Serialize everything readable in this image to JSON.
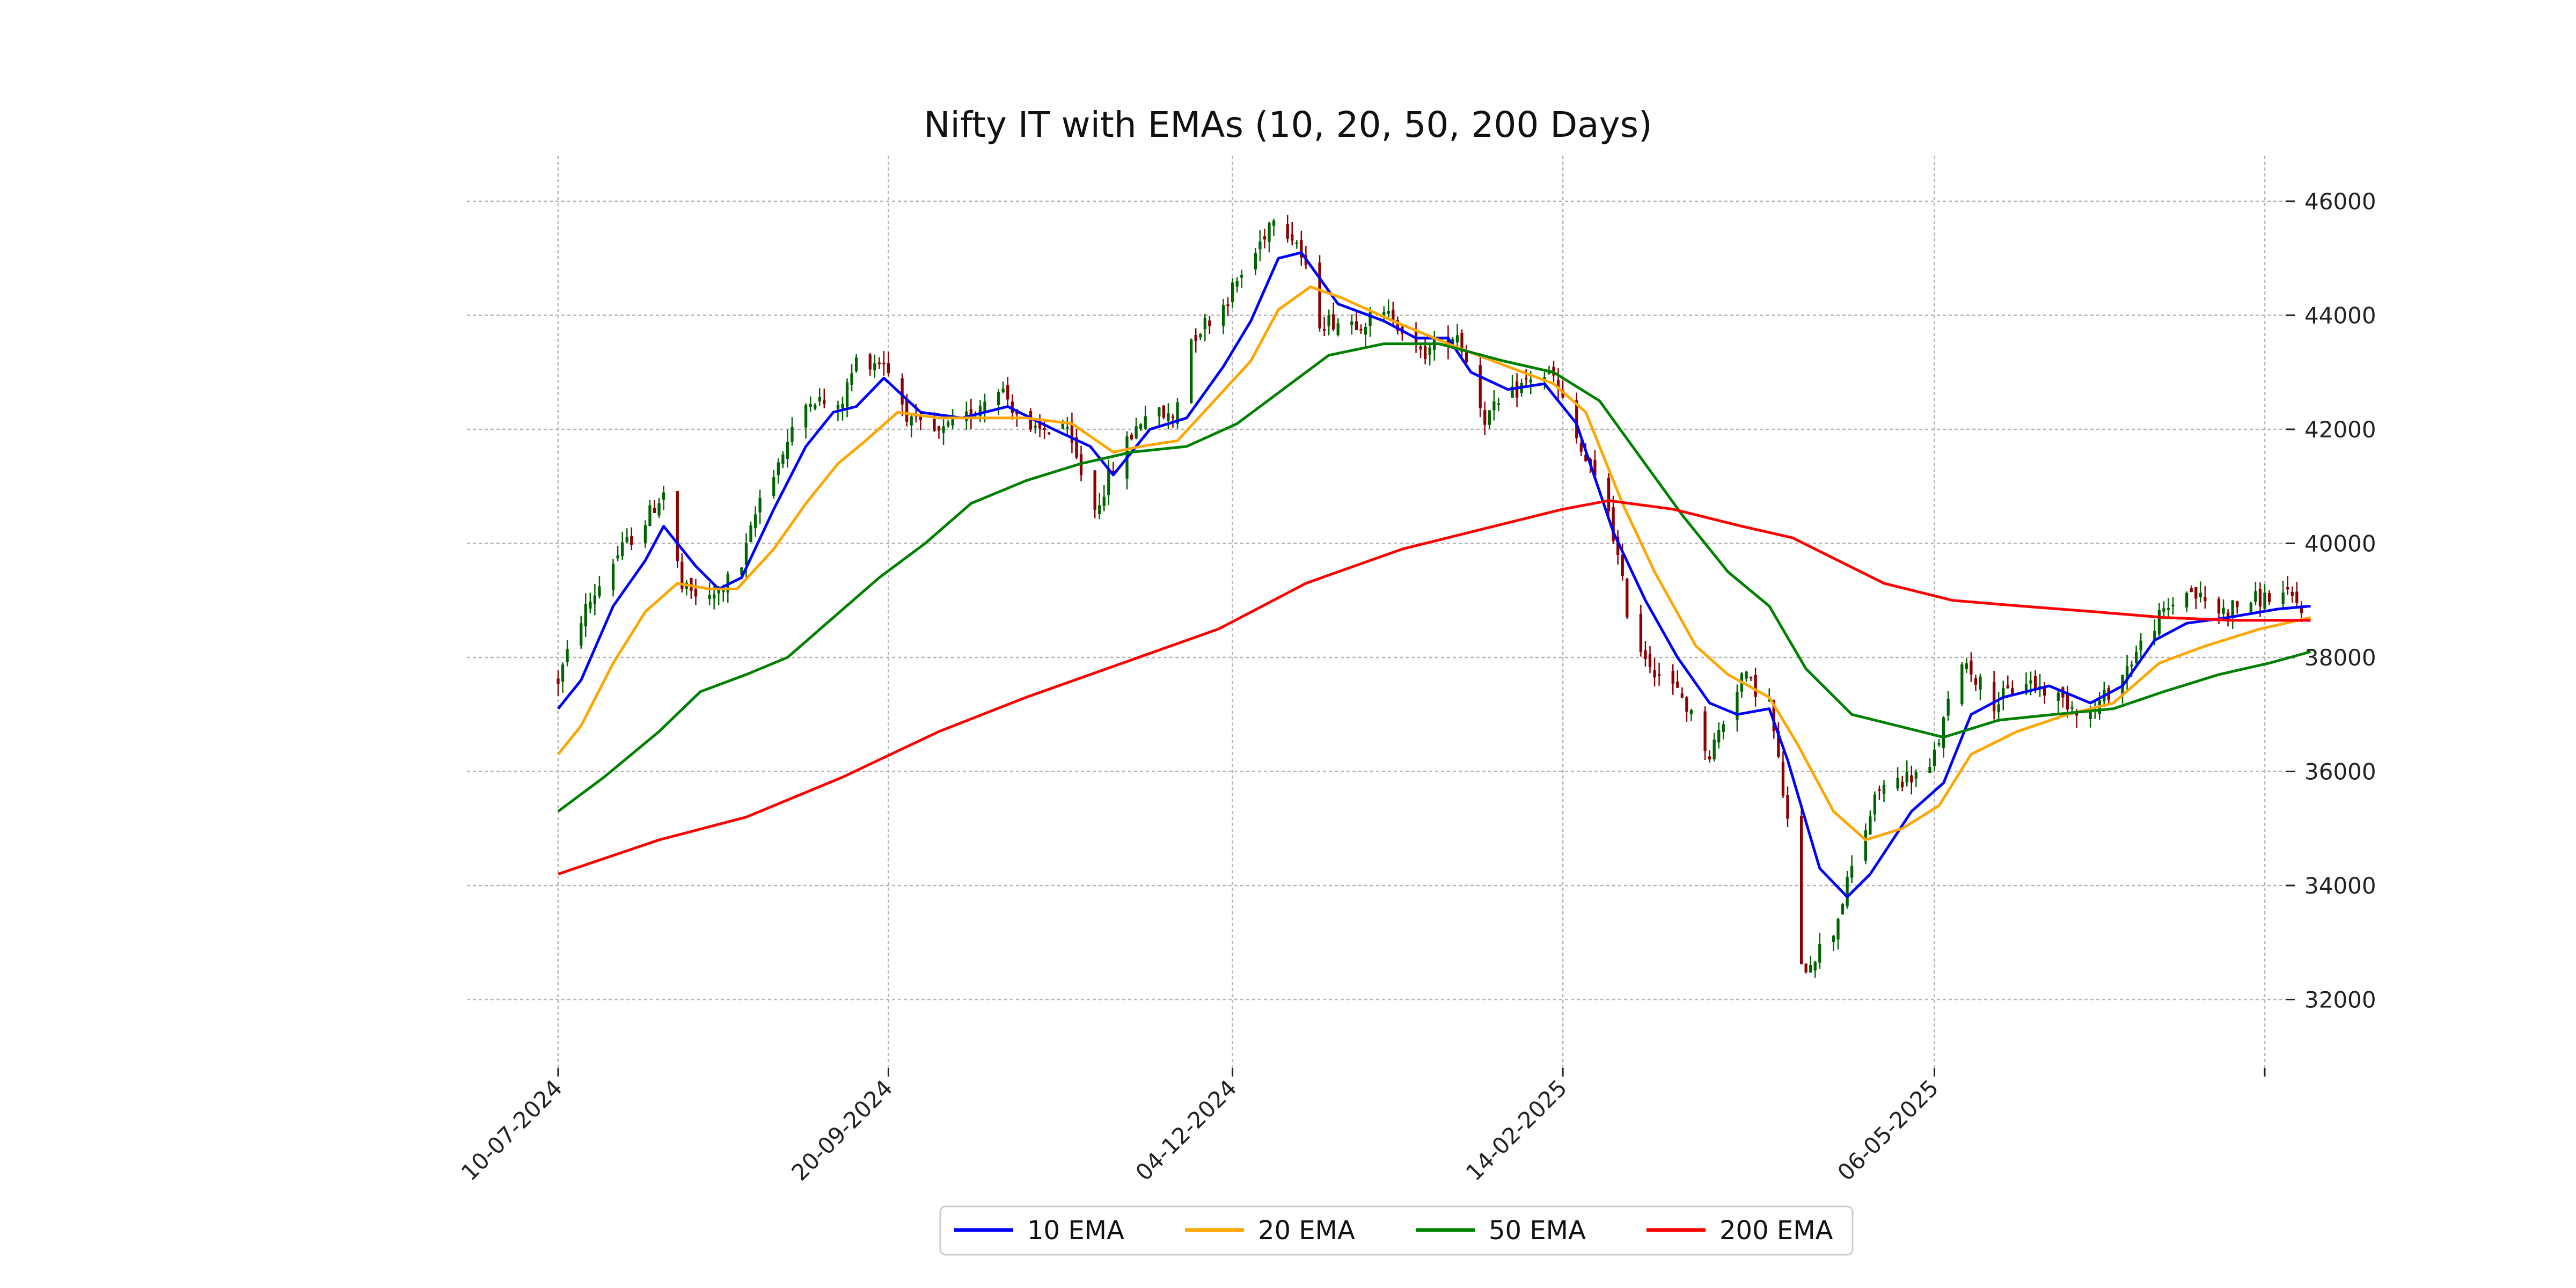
{
  "chart_data": {
    "type": "candlestick",
    "title": "Nifty IT with EMAs (10, 20, 50, 200 Days)",
    "xlabel": "",
    "ylabel": "",
    "x_range": [
      "2024-07-10",
      "2025-07-31"
    ],
    "ylim": [
      30800,
      46800
    ],
    "y_ticks": [
      32000,
      34000,
      36000,
      38000,
      40000,
      42000,
      44000,
      46000
    ],
    "x_ticks": [
      {
        "date": "2024-07-10",
        "label": "10-07-2024"
      },
      {
        "date": "2024-09-20",
        "label": "20-09-2024"
      },
      {
        "date": "2024-12-04",
        "label": "04-12-2024"
      },
      {
        "date": "2025-02-14",
        "label": "14-02-2025"
      },
      {
        "date": "2025-05-06",
        "label": "06-05-2025"
      },
      {
        "date": "2025-07-17",
        "label": ""
      }
    ],
    "grid": true,
    "legend_position": "bottom-center",
    "up_color": "#006400",
    "down_color": "#8b0000",
    "price_path": [
      [
        "2024-07-10",
        37600
      ],
      [
        "2024-07-15",
        38700
      ],
      [
        "2024-07-22",
        39700
      ],
      [
        "2024-07-29",
        40400
      ],
      [
        "2024-08-02",
        40900
      ],
      [
        "2024-08-06",
        39200
      ],
      [
        "2024-08-12",
        39000
      ],
      [
        "2024-08-19",
        39600
      ],
      [
        "2024-08-23",
        40800
      ],
      [
        "2024-08-28",
        41600
      ],
      [
        "2024-09-03",
        42600
      ],
      [
        "2024-09-09",
        42300
      ],
      [
        "2024-09-13",
        43200
      ],
      [
        "2024-09-19",
        43200
      ],
      [
        "2024-09-25",
        42100
      ],
      [
        "2024-10-01",
        41900
      ],
      [
        "2024-10-07",
        42200
      ],
      [
        "2024-10-14",
        42800
      ],
      [
        "2024-10-21",
        41900
      ],
      [
        "2024-10-28",
        42100
      ],
      [
        "2024-11-04",
        40600
      ],
      [
        "2024-11-09",
        41500
      ],
      [
        "2024-11-15",
        42300
      ],
      [
        "2024-11-21",
        42200
      ],
      [
        "2024-11-25",
        43600
      ],
      [
        "2024-12-02",
        44200
      ],
      [
        "2024-12-09",
        45100
      ],
      [
        "2024-12-13",
        45800
      ],
      [
        "2024-12-18",
        45300
      ],
      [
        "2024-12-23",
        43900
      ],
      [
        "2025-01-01",
        43900
      ],
      [
        "2025-01-08",
        44000
      ],
      [
        "2025-01-14",
        43300
      ],
      [
        "2025-01-22",
        43700
      ],
      [
        "2025-01-28",
        42200
      ],
      [
        "2025-02-03",
        42600
      ],
      [
        "2025-02-08",
        43000
      ],
      [
        "2025-02-12",
        42900
      ],
      [
        "2025-02-18",
        41600
      ],
      [
        "2025-02-24",
        40600
      ],
      [
        "2025-03-01",
        38400
      ],
      [
        "2025-03-06",
        37800
      ],
      [
        "2025-03-12",
        37300
      ],
      [
        "2025-03-18",
        36300
      ],
      [
        "2025-03-25",
        37700
      ],
      [
        "2025-03-31",
        37200
      ],
      [
        "2025-04-04",
        35100
      ],
      [
        "2025-04-07",
        32500
      ],
      [
        "2025-04-14",
        33200
      ],
      [
        "2025-04-18",
        34300
      ],
      [
        "2025-04-24",
        35700
      ],
      [
        "2025-04-30",
        35900
      ],
      [
        "2025-05-05",
        36000
      ],
      [
        "2025-05-12",
        38000
      ],
      [
        "2025-05-19",
        37200
      ],
      [
        "2025-05-26",
        37600
      ],
      [
        "2025-06-02",
        37300
      ],
      [
        "2025-06-09",
        37000
      ],
      [
        "2025-06-16",
        37700
      ],
      [
        "2025-06-23",
        38600
      ],
      [
        "2025-06-30",
        39200
      ],
      [
        "2025-07-07",
        38800
      ],
      [
        "2025-07-14",
        39000
      ],
      [
        "2025-07-21",
        39100
      ],
      [
        "2025-07-27",
        38800
      ]
    ],
    "series": [
      {
        "name": "10 EMA",
        "color": "#0000ff",
        "points": [
          [
            "2024-07-10",
            37100
          ],
          [
            "2024-07-15",
            37600
          ],
          [
            "2024-07-22",
            38900
          ],
          [
            "2024-07-29",
            39700
          ],
          [
            "2024-08-02",
            40300
          ],
          [
            "2024-08-09",
            39600
          ],
          [
            "2024-08-14",
            39200
          ],
          [
            "2024-08-19",
            39400
          ],
          [
            "2024-08-26",
            40600
          ],
          [
            "2024-09-02",
            41700
          ],
          [
            "2024-09-08",
            42300
          ],
          [
            "2024-09-13",
            42400
          ],
          [
            "2024-09-19",
            42900
          ],
          [
            "2024-09-27",
            42300
          ],
          [
            "2024-10-06",
            42200
          ],
          [
            "2024-10-16",
            42400
          ],
          [
            "2024-10-26",
            42000
          ],
          [
            "2024-11-03",
            41700
          ],
          [
            "2024-11-08",
            41200
          ],
          [
            "2024-11-16",
            42000
          ],
          [
            "2024-11-24",
            42200
          ],
          [
            "2024-12-02",
            43100
          ],
          [
            "2024-12-08",
            43900
          ],
          [
            "2024-12-14",
            45000
          ],
          [
            "2024-12-19",
            45100
          ],
          [
            "2024-12-27",
            44200
          ],
          [
            "2025-01-06",
            43900
          ],
          [
            "2025-01-13",
            43600
          ],
          [
            "2025-01-20",
            43600
          ],
          [
            "2025-01-25",
            43000
          ],
          [
            "2025-02-02",
            42700
          ],
          [
            "2025-02-10",
            42800
          ],
          [
            "2025-02-17",
            42100
          ],
          [
            "2025-02-25",
            40200
          ],
          [
            "2025-03-04",
            39000
          ],
          [
            "2025-03-11",
            38000
          ],
          [
            "2025-03-18",
            37200
          ],
          [
            "2025-03-24",
            37000
          ],
          [
            "2025-03-31",
            37100
          ],
          [
            "2025-04-04",
            36200
          ],
          [
            "2025-04-11",
            34300
          ],
          [
            "2025-04-17",
            33800
          ],
          [
            "2025-04-22",
            34200
          ],
          [
            "2025-05-01",
            35300
          ],
          [
            "2025-05-08",
            35800
          ],
          [
            "2025-05-14",
            37000
          ],
          [
            "2025-05-21",
            37300
          ],
          [
            "2025-05-31",
            37500
          ],
          [
            "2025-06-09",
            37200
          ],
          [
            "2025-06-16",
            37500
          ],
          [
            "2025-06-23",
            38300
          ],
          [
            "2025-06-30",
            38600
          ],
          [
            "2025-07-09",
            38700
          ],
          [
            "2025-07-20",
            38850
          ],
          [
            "2025-07-27",
            38900
          ]
        ]
      },
      {
        "name": "20 EMA",
        "color": "#ffa500",
        "points": [
          [
            "2024-07-10",
            36300
          ],
          [
            "2024-07-15",
            36800
          ],
          [
            "2024-07-22",
            37900
          ],
          [
            "2024-07-29",
            38800
          ],
          [
            "2024-08-05",
            39300
          ],
          [
            "2024-08-12",
            39200
          ],
          [
            "2024-08-18",
            39200
          ],
          [
            "2024-08-26",
            39900
          ],
          [
            "2024-09-02",
            40700
          ],
          [
            "2024-09-09",
            41400
          ],
          [
            "2024-09-15",
            41800
          ],
          [
            "2024-09-22",
            42300
          ],
          [
            "2024-10-01",
            42200
          ],
          [
            "2024-10-11",
            42200
          ],
          [
            "2024-10-20",
            42200
          ],
          [
            "2024-10-30",
            42100
          ],
          [
            "2024-11-08",
            41600
          ],
          [
            "2024-11-14",
            41700
          ],
          [
            "2024-11-22",
            41800
          ],
          [
            "2024-11-30",
            42500
          ],
          [
            "2024-12-08",
            43200
          ],
          [
            "2024-12-14",
            44100
          ],
          [
            "2024-12-21",
            44500
          ],
          [
            "2024-12-28",
            44300
          ],
          [
            "2025-01-08",
            43900
          ],
          [
            "2025-01-20",
            43500
          ],
          [
            "2025-02-02",
            43100
          ],
          [
            "2025-02-12",
            42800
          ],
          [
            "2025-02-19",
            42300
          ],
          [
            "2025-02-27",
            40700
          ],
          [
            "2025-03-06",
            39500
          ],
          [
            "2025-03-15",
            38200
          ],
          [
            "2025-03-22",
            37700
          ],
          [
            "2025-03-31",
            37300
          ],
          [
            "2025-04-06",
            36500
          ],
          [
            "2025-04-14",
            35300
          ],
          [
            "2025-04-21",
            34800
          ],
          [
            "2025-04-29",
            35000
          ],
          [
            "2025-05-07",
            35400
          ],
          [
            "2025-05-14",
            36300
          ],
          [
            "2025-05-24",
            36700
          ],
          [
            "2025-06-04",
            37000
          ],
          [
            "2025-06-14",
            37200
          ],
          [
            "2025-06-24",
            37900
          ],
          [
            "2025-07-04",
            38200
          ],
          [
            "2025-07-16",
            38500
          ],
          [
            "2025-07-27",
            38700
          ]
        ]
      },
      {
        "name": "50 EMA",
        "color": "#008000",
        "points": [
          [
            "2024-07-10",
            35300
          ],
          [
            "2024-07-20",
            35900
          ],
          [
            "2024-08-01",
            36700
          ],
          [
            "2024-08-10",
            37400
          ],
          [
            "2024-08-20",
            37700
          ],
          [
            "2024-08-29",
            38000
          ],
          [
            "2024-09-08",
            38700
          ],
          [
            "2024-09-18",
            39400
          ],
          [
            "2024-09-28",
            40000
          ],
          [
            "2024-10-08",
            40700
          ],
          [
            "2024-10-20",
            41100
          ],
          [
            "2024-11-01",
            41400
          ],
          [
            "2024-11-12",
            41600
          ],
          [
            "2024-11-24",
            41700
          ],
          [
            "2024-12-05",
            42100
          ],
          [
            "2024-12-15",
            42700
          ],
          [
            "2024-12-25",
            43300
          ],
          [
            "2025-01-06",
            43500
          ],
          [
            "2025-01-18",
            43500
          ],
          [
            "2025-02-01",
            43200
          ],
          [
            "2025-02-12",
            43000
          ],
          [
            "2025-02-22",
            42500
          ],
          [
            "2025-03-03",
            41500
          ],
          [
            "2025-03-12",
            40500
          ],
          [
            "2025-03-22",
            39500
          ],
          [
            "2025-03-31",
            38900
          ],
          [
            "2025-04-08",
            37800
          ],
          [
            "2025-04-18",
            37000
          ],
          [
            "2025-04-28",
            36800
          ],
          [
            "2025-05-08",
            36600
          ],
          [
            "2025-05-20",
            36900
          ],
          [
            "2025-06-01",
            37000
          ],
          [
            "2025-06-14",
            37100
          ],
          [
            "2025-06-25",
            37400
          ],
          [
            "2025-07-07",
            37700
          ],
          [
            "2025-07-18",
            37900
          ],
          [
            "2025-07-27",
            38100
          ]
        ]
      },
      {
        "name": "200 EMA",
        "color": "#ff0000",
        "points": [
          [
            "2024-07-10",
            34200
          ],
          [
            "2024-08-01",
            34800
          ],
          [
            "2024-08-20",
            35200
          ],
          [
            "2024-09-10",
            35900
          ],
          [
            "2024-10-01",
            36700
          ],
          [
            "2024-10-20",
            37300
          ],
          [
            "2024-11-10",
            37900
          ],
          [
            "2024-12-01",
            38500
          ],
          [
            "2024-12-20",
            39300
          ],
          [
            "2025-01-10",
            39900
          ],
          [
            "2025-01-30",
            40300
          ],
          [
            "2025-02-14",
            40600
          ],
          [
            "2025-02-24",
            40750
          ],
          [
            "2025-03-10",
            40600
          ],
          [
            "2025-03-25",
            40300
          ],
          [
            "2025-04-05",
            40100
          ],
          [
            "2025-04-15",
            39700
          ],
          [
            "2025-04-25",
            39300
          ],
          [
            "2025-05-10",
            39000
          ],
          [
            "2025-05-25",
            38900
          ],
          [
            "2025-06-10",
            38800
          ],
          [
            "2025-06-25",
            38700
          ],
          [
            "2025-07-10",
            38650
          ],
          [
            "2025-07-27",
            38650
          ]
        ]
      }
    ]
  }
}
